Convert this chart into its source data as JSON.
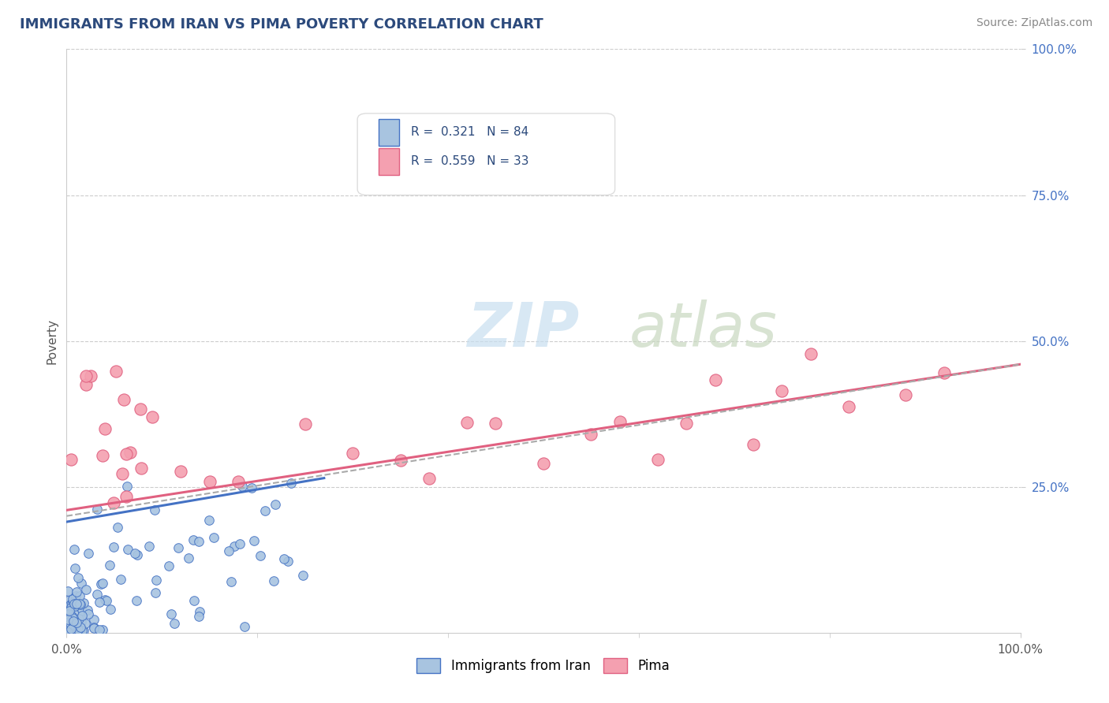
{
  "title": "IMMIGRANTS FROM IRAN VS PIMA POVERTY CORRELATION CHART",
  "source_text": "Source: ZipAtlas.com",
  "ylabel": "Poverty",
  "xlim": [
    0.0,
    1.0
  ],
  "ylim": [
    0.0,
    1.0
  ],
  "ytick_positions": [
    0.25,
    0.5,
    0.75,
    1.0
  ],
  "ytick_labels": [
    "25.0%",
    "50.0%",
    "75.0%",
    "100.0%"
  ],
  "color_blue": "#a8c4e0",
  "color_pink": "#f4a0b0",
  "line_blue": "#4472c4",
  "line_pink": "#e06080",
  "blue_trend_x": [
    0.0,
    0.27
  ],
  "blue_trend_y": [
    0.19,
    0.265
  ],
  "pink_trend_x": [
    0.0,
    1.0
  ],
  "pink_trend_y": [
    0.21,
    0.46
  ],
  "gray_trend_x": [
    0.0,
    1.0
  ],
  "gray_trend_y": [
    0.2,
    0.46
  ]
}
